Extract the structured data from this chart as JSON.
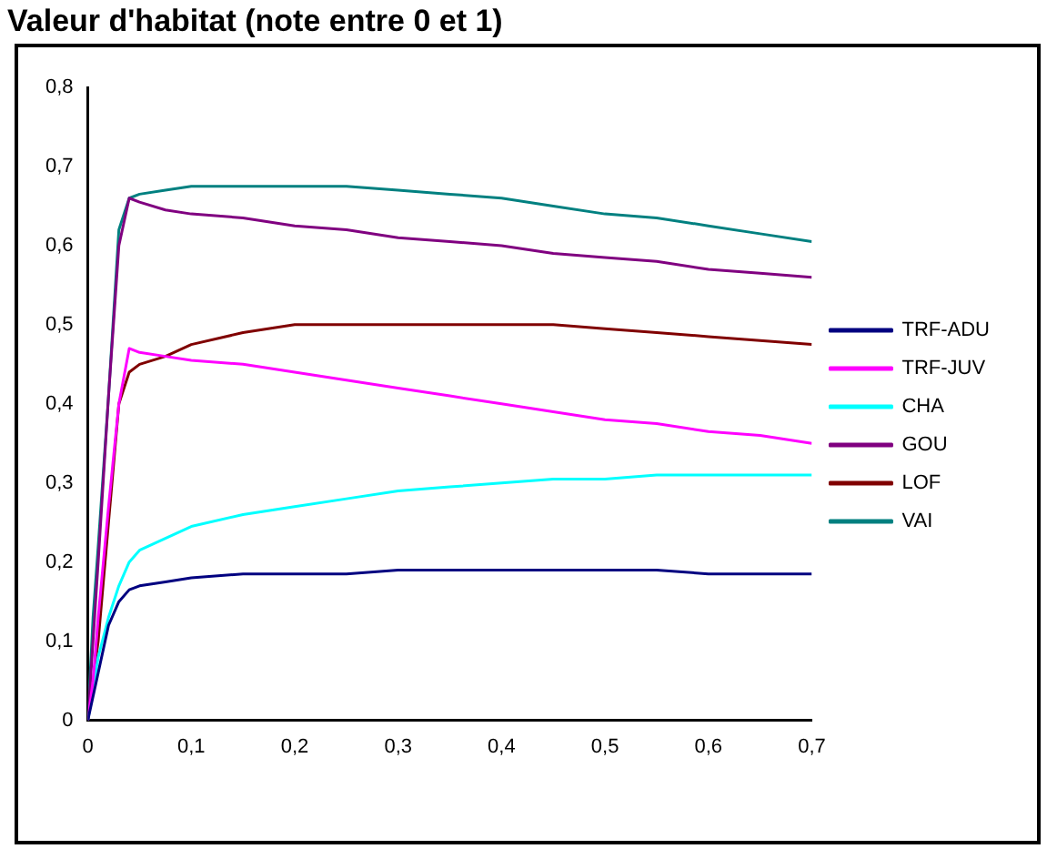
{
  "chart_data": {
    "type": "line",
    "title": "Valeur d'habitat (note entre 0 et 1)",
    "x": [
      0,
      0.005,
      0.01,
      0.02,
      0.03,
      0.04,
      0.05,
      0.075,
      0.1,
      0.15,
      0.2,
      0.25,
      0.3,
      0.35,
      0.4,
      0.45,
      0.5,
      0.55,
      0.6,
      0.65,
      0.7
    ],
    "series": [
      {
        "name": "TRF-ADU",
        "color": "#000080",
        "values": [
          0,
          0.03,
          0.06,
          0.12,
          0.15,
          0.165,
          0.17,
          0.175,
          0.18,
          0.185,
          0.185,
          0.185,
          0.19,
          0.19,
          0.19,
          0.19,
          0.19,
          0.19,
          0.185,
          0.185,
          0.185
        ]
      },
      {
        "name": "TRF-JUV",
        "color": "#ff00ff",
        "values": [
          0,
          0.05,
          0.13,
          0.27,
          0.4,
          0.47,
          0.465,
          0.46,
          0.455,
          0.45,
          0.44,
          0.43,
          0.42,
          0.41,
          0.4,
          0.39,
          0.38,
          0.375,
          0.365,
          0.36,
          0.35
        ]
      },
      {
        "name": "CHA",
        "color": "#00ffff",
        "values": [
          0,
          0.04,
          0.08,
          0.13,
          0.17,
          0.2,
          0.215,
          0.23,
          0.245,
          0.26,
          0.27,
          0.28,
          0.29,
          0.295,
          0.3,
          0.305,
          0.305,
          0.31,
          0.31,
          0.31,
          0.31
        ]
      },
      {
        "name": "GOU",
        "color": "#800080",
        "values": [
          0,
          0.1,
          0.2,
          0.41,
          0.6,
          0.66,
          0.655,
          0.645,
          0.64,
          0.635,
          0.625,
          0.62,
          0.61,
          0.605,
          0.6,
          0.59,
          0.585,
          0.58,
          0.57,
          0.565,
          0.56
        ]
      },
      {
        "name": "LOF",
        "color": "#800000",
        "values": [
          0,
          0.05,
          0.1,
          0.25,
          0.4,
          0.44,
          0.45,
          0.46,
          0.475,
          0.49,
          0.5,
          0.5,
          0.5,
          0.5,
          0.5,
          0.5,
          0.495,
          0.49,
          0.485,
          0.48,
          0.475
        ]
      },
      {
        "name": "VAI",
        "color": "#008080",
        "values": [
          0,
          0.13,
          0.22,
          0.41,
          0.62,
          0.66,
          0.665,
          0.67,
          0.675,
          0.675,
          0.675,
          0.675,
          0.67,
          0.665,
          0.66,
          0.65,
          0.64,
          0.635,
          0.625,
          0.615,
          0.605
        ]
      }
    ],
    "xlim": [
      0,
      0.7
    ],
    "xticks": [
      0,
      {
        "value": 0.1,
        "label": "0,1"
      },
      {
        "value": 0.2,
        "label": "0,2"
      },
      {
        "value": 0.3,
        "label": "0,3"
      },
      {
        "value": 0.4,
        "label": "0,4"
      },
      {
        "value": 0.5,
        "label": "0,5"
      },
      {
        "value": 0.6,
        "label": "0,6"
      },
      {
        "value": 0.7,
        "label": "0,7"
      }
    ],
    "ylim": [
      0,
      0.8
    ],
    "yticks": [
      0,
      {
        "value": 0.1,
        "label": "0,1"
      },
      {
        "value": 0.2,
        "label": "0,2"
      },
      {
        "value": 0.3,
        "label": "0,3"
      },
      {
        "value": 0.4,
        "label": "0,4"
      },
      {
        "value": 0.5,
        "label": "0,5"
      },
      {
        "value": 0.6,
        "label": "0,6"
      },
      {
        "value": 0.7,
        "label": "0,7"
      },
      {
        "value": 0.8,
        "label": "0,8"
      }
    ],
    "grid": false,
    "legend": "right",
    "marker": "none",
    "line_style": "solid"
  }
}
